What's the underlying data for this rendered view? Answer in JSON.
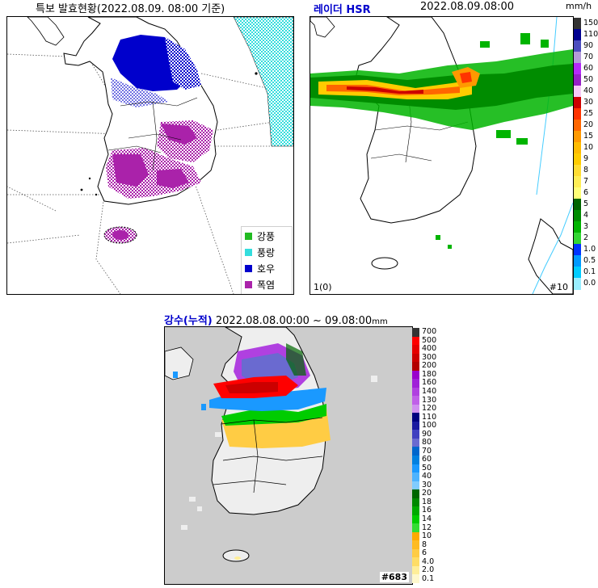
{
  "panel1": {
    "title": "특보 발효현황(2022.08.09. 08:00 기준)",
    "legend": [
      {
        "label": "강풍",
        "color": "#22bb22"
      },
      {
        "label": "풍랑",
        "color": "#33dddd"
      },
      {
        "label": "호우",
        "color": "#0000cc"
      },
      {
        "label": "폭염",
        "color": "#aa22aa"
      }
    ]
  },
  "panel2": {
    "title_left": "레이더 HSR",
    "title_right": "2022.08.09.08:00",
    "unit": "mm/h",
    "corner_left": "1(0)",
    "corner_right": "#10",
    "scale": [
      {
        "label": "150",
        "color": "#333333"
      },
      {
        "label": "110",
        "color": "#000090"
      },
      {
        "label": "90",
        "color": "#4c4ebf"
      },
      {
        "label": "70",
        "color": "#b39bd9"
      },
      {
        "label": "60",
        "color": "#b429f9"
      },
      {
        "label": "50",
        "color": "#9620c6"
      },
      {
        "label": "40",
        "color": "#f7c9f7"
      },
      {
        "label": "30",
        "color": "#cc0000"
      },
      {
        "label": "25",
        "color": "#ff3300"
      },
      {
        "label": "20",
        "color": "#ff6600"
      },
      {
        "label": "15",
        "color": "#ff9900"
      },
      {
        "label": "10",
        "color": "#ffbb00"
      },
      {
        "label": "9",
        "color": "#ffcc00"
      },
      {
        "label": "8",
        "color": "#ffdd33"
      },
      {
        "label": "7",
        "color": "#ffee55"
      },
      {
        "label": "6",
        "color": "#ffff77"
      },
      {
        "label": "5",
        "color": "#006400"
      },
      {
        "label": "4",
        "color": "#008c00"
      },
      {
        "label": "3",
        "color": "#00b400"
      },
      {
        "label": "2",
        "color": "#33d633"
      },
      {
        "label": "1.0",
        "color": "#0033ff"
      },
      {
        "label": "0.5",
        "color": "#0099ff"
      },
      {
        "label": "0.1",
        "color": "#00ccff"
      },
      {
        "label": "0.0",
        "color": "#99eeff"
      }
    ]
  },
  "panel3": {
    "title_prefix": "강수(누적)",
    "title_range": "2022.08.08.00:00 ~ 09.08:00",
    "unit": "mm",
    "corner_right": "#683",
    "scale": [
      {
        "label": "700",
        "color": "#333333"
      },
      {
        "label": "500",
        "color": "#ff0000"
      },
      {
        "label": "400",
        "color": "#e60000"
      },
      {
        "label": "300",
        "color": "#cc0000"
      },
      {
        "label": "200",
        "color": "#b30000"
      },
      {
        "label": "180",
        "color": "#9900cc"
      },
      {
        "label": "160",
        "color": "#a020d8"
      },
      {
        "label": "140",
        "color": "#b040e0"
      },
      {
        "label": "130",
        "color": "#c060e8"
      },
      {
        "label": "120",
        "color": "#d090f0"
      },
      {
        "label": "110",
        "color": "#000080"
      },
      {
        "label": "100",
        "color": "#1a1aa0"
      },
      {
        "label": "90",
        "color": "#4040c0"
      },
      {
        "label": "80",
        "color": "#6a6ad0"
      },
      {
        "label": "70",
        "color": "#0066cc"
      },
      {
        "label": "60",
        "color": "#0080e0"
      },
      {
        "label": "50",
        "color": "#1a99ff"
      },
      {
        "label": "40",
        "color": "#4db3ff"
      },
      {
        "label": "30",
        "color": "#80ccff"
      },
      {
        "label": "20",
        "color": "#006600"
      },
      {
        "label": "18",
        "color": "#008800"
      },
      {
        "label": "16",
        "color": "#00aa00"
      },
      {
        "label": "14",
        "color": "#00cc00"
      },
      {
        "label": "12",
        "color": "#33dd33"
      },
      {
        "label": "10",
        "color": "#ffaa00"
      },
      {
        "label": "8",
        "color": "#ffbb22"
      },
      {
        "label": "6",
        "color": "#ffcc44"
      },
      {
        "label": "4.0",
        "color": "#ffdd66"
      },
      {
        "label": "2.0",
        "color": "#ffee99"
      },
      {
        "label": "0.1",
        "color": "#fff8cc"
      }
    ]
  }
}
